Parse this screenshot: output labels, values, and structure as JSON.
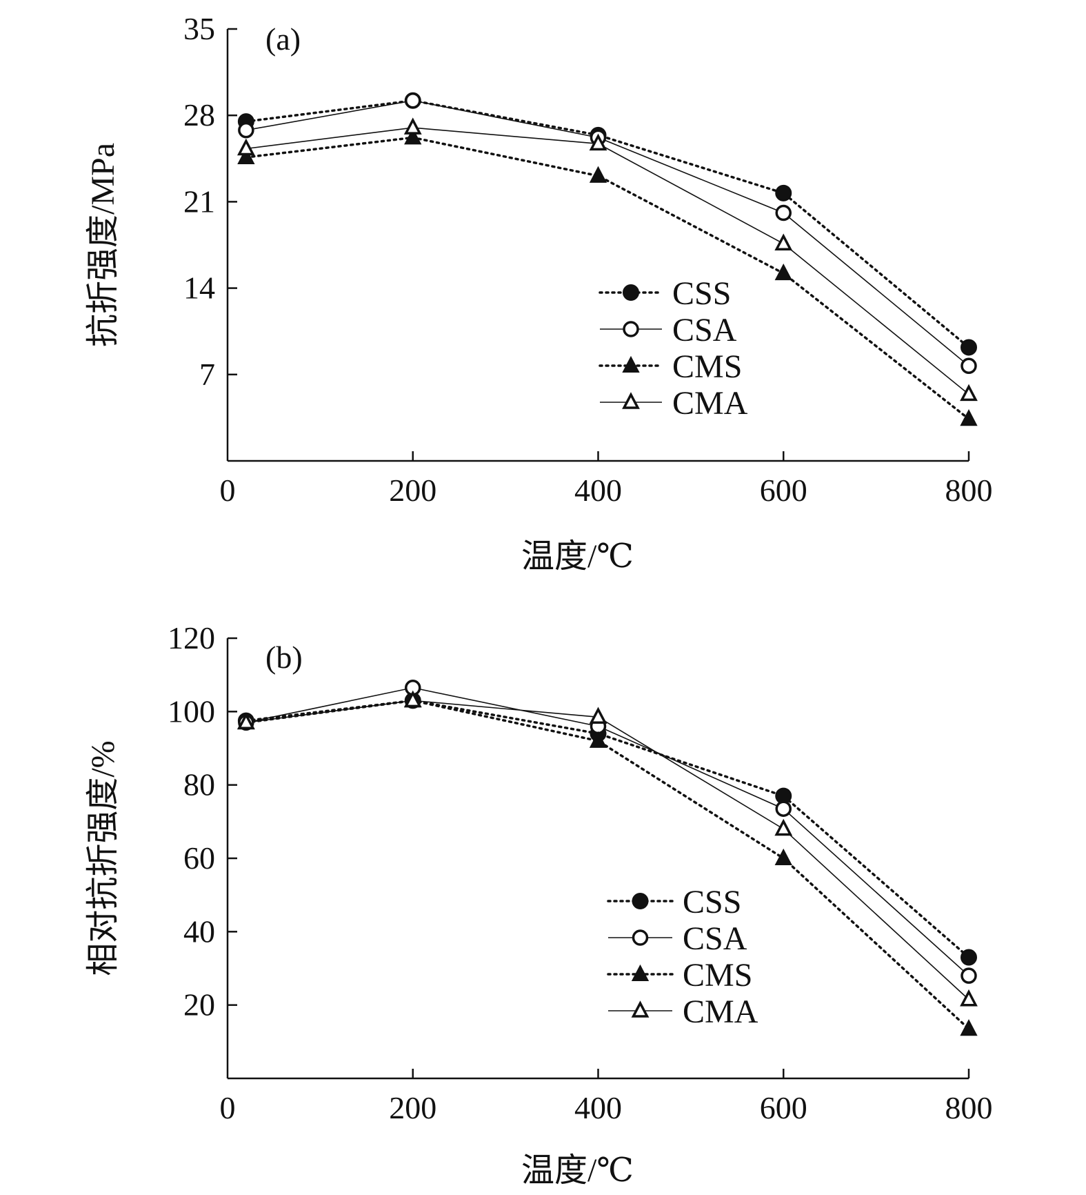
{
  "chart_data": [
    {
      "type": "line",
      "panel_label": "(a)",
      "xlabel": "温度/℃",
      "ylabel": "抗折强度/MPa",
      "xlim": [
        0,
        800
      ],
      "ylim": [
        0,
        35
      ],
      "xticks": [
        0,
        200,
        400,
        600,
        800
      ],
      "yticks": [
        7,
        14,
        21,
        28,
        35
      ],
      "x": [
        20,
        200,
        400,
        600,
        800
      ],
      "legend_placement": "center-right",
      "series": [
        {
          "name": "CSS",
          "values": [
            27.5,
            29.2,
            26.4,
            21.7,
            9.2
          ],
          "marker": "filled-circle",
          "line": "dotted"
        },
        {
          "name": "CSA",
          "values": [
            26.8,
            29.2,
            26.2,
            20.1,
            7.7
          ],
          "marker": "open-circle",
          "line": "solid"
        },
        {
          "name": "CMS",
          "values": [
            24.6,
            26.2,
            23.1,
            15.2,
            3.4
          ],
          "marker": "filled-triangle",
          "line": "dotted"
        },
        {
          "name": "CMA",
          "values": [
            25.3,
            27.0,
            25.7,
            17.6,
            5.4
          ],
          "marker": "open-triangle",
          "line": "solid"
        }
      ]
    },
    {
      "type": "line",
      "panel_label": "(b)",
      "xlabel": "温度/℃",
      "ylabel": "相对抗折强度/%",
      "xlim": [
        0,
        800
      ],
      "ylim": [
        0,
        120
      ],
      "xticks": [
        0,
        200,
        400,
        600,
        800
      ],
      "yticks": [
        20,
        40,
        60,
        80,
        100,
        120
      ],
      "x": [
        20,
        200,
        400,
        600,
        800
      ],
      "legend_placement": "center-right",
      "series": [
        {
          "name": "CSS",
          "values": [
            97.5,
            103.0,
            94.0,
            77.0,
            33.0
          ],
          "marker": "filled-circle",
          "line": "dotted"
        },
        {
          "name": "CSA",
          "values": [
            97.0,
            106.5,
            96.0,
            73.5,
            28.0
          ],
          "marker": "open-circle",
          "line": "solid"
        },
        {
          "name": "CMS",
          "values": [
            97.0,
            103.0,
            92.0,
            60.0,
            13.5
          ],
          "marker": "filled-triangle",
          "line": "dotted"
        },
        {
          "name": "CMA",
          "values": [
            97.0,
            103.0,
            98.5,
            68.0,
            21.5
          ],
          "marker": "open-triangle",
          "line": "solid"
        }
      ]
    }
  ]
}
